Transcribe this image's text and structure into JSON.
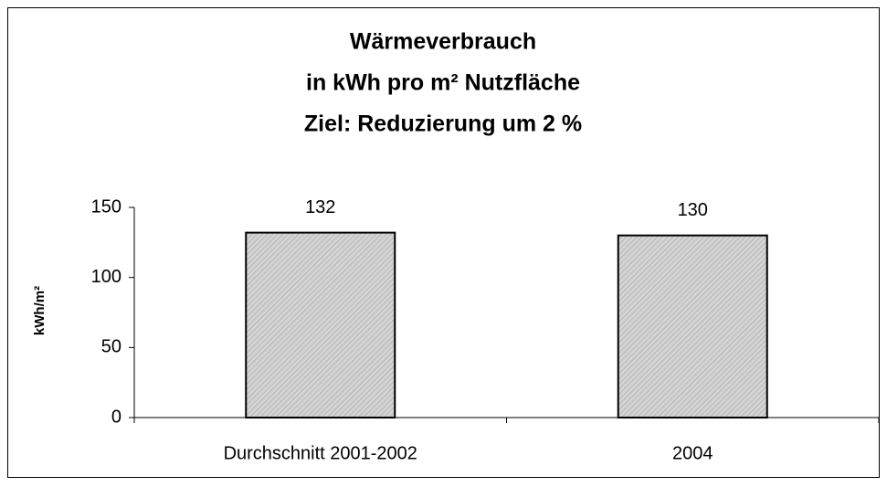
{
  "chart_data": {
    "type": "bar",
    "title": [
      "Wärmeverbrauch",
      "in kWh pro m² Nutzfläche",
      "Ziel: Reduzierung um 2 %"
    ],
    "y_label": "kWh/m²",
    "categories": [
      "Durchschnitt 2001-2002",
      "2004"
    ],
    "values": [
      132,
      130
    ],
    "color": "#d4d4d4",
    "ylim": [
      0,
      150
    ],
    "yticks": [
      0,
      50,
      100,
      150
    ],
    "grid": false
  }
}
